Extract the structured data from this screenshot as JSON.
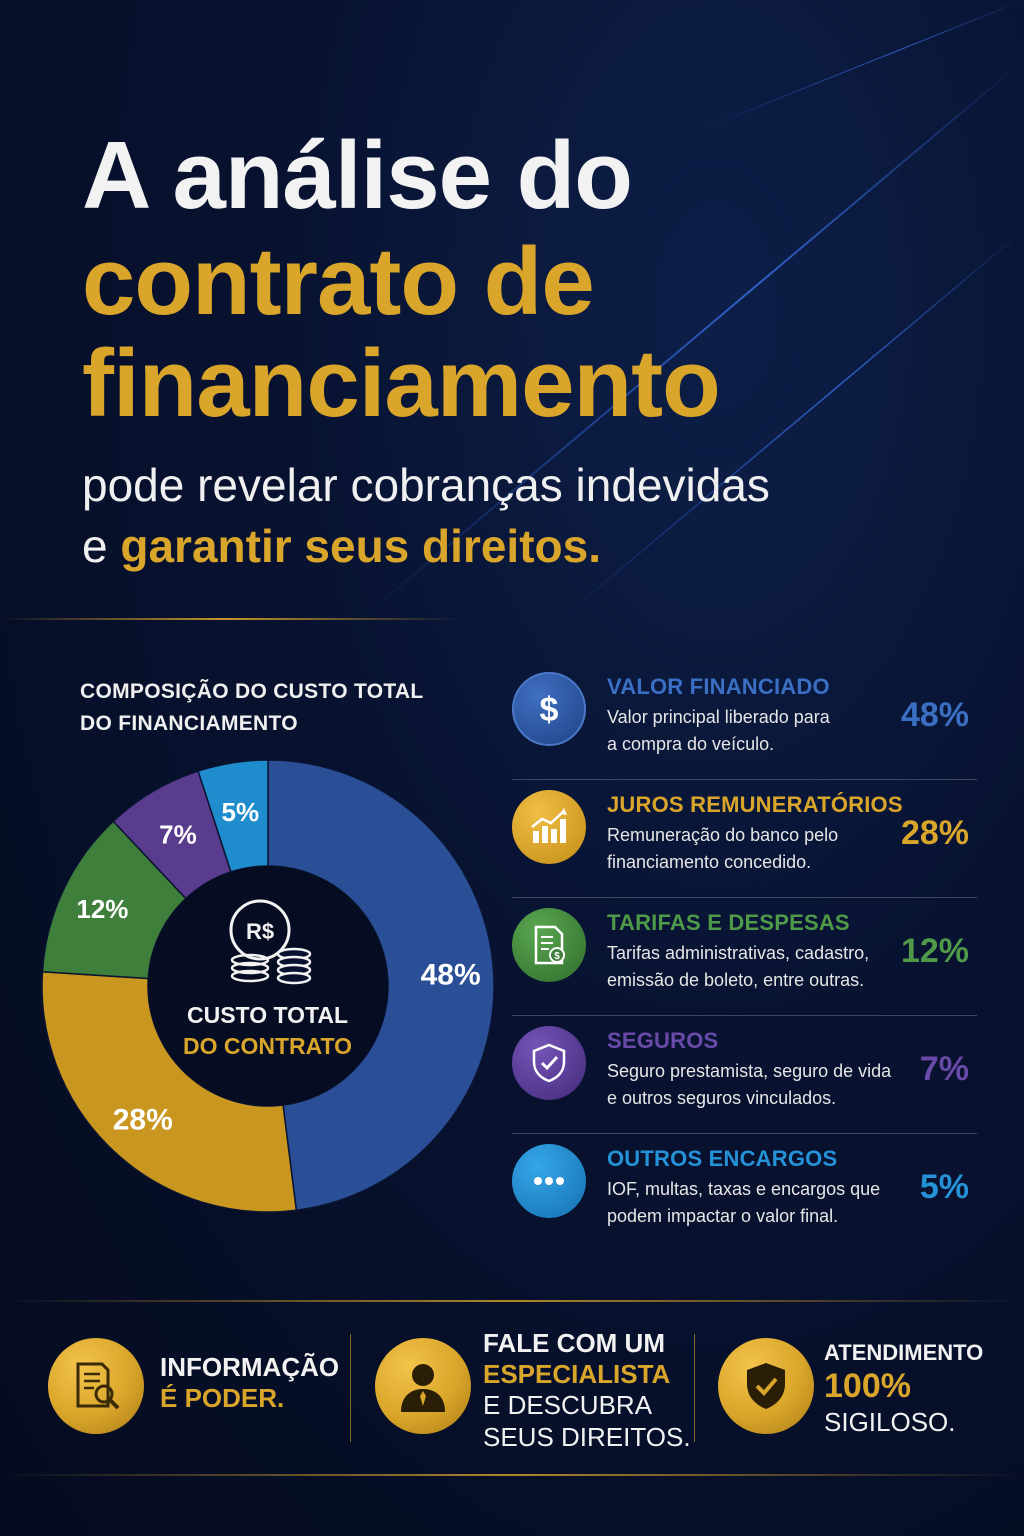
{
  "hero": {
    "line1": "A análise do",
    "line2": "contrato de",
    "line3": "financiamento",
    "line4": "pode revelar cobranças indevidas",
    "line5_prefix": "e ",
    "line5_highlight": "garantir seus direitos."
  },
  "chart_title_line1": "COMPOSIÇÃO DO CUSTO TOTAL",
  "chart_title_line2": "DO FINANCIAMENTO",
  "center": {
    "currency": "R$",
    "line1": "CUSTO TOTAL",
    "line2": "DO CONTRATO"
  },
  "chart_data": {
    "type": "pie",
    "title": "COMPOSIÇÃO DO CUSTO TOTAL DO FINANCIAMENTO",
    "donut": true,
    "categories": [
      "VALOR FINANCIADO",
      "JUROS REMUNERATÓRIOS",
      "TARIFAS E DESPESAS",
      "SEGUROS",
      "OUTROS ENCARGOS"
    ],
    "values": [
      48,
      28,
      12,
      7,
      5
    ],
    "labels": [
      "48%",
      "28%",
      "12%",
      "7%",
      "5%"
    ],
    "colors": [
      "#2a4f96",
      "#c9961f",
      "#3f7f3c",
      "#5a3c8e",
      "#1f8ccd"
    ]
  },
  "legend": [
    {
      "title": "VALOR FINANCIADO",
      "desc1": "Valor principal liberado para",
      "desc2": "a compra do veículo.",
      "pct": "48%",
      "color": "#3a6fc4",
      "icon": "dollar-icon"
    },
    {
      "title": "JUROS REMUNERATÓRIOS",
      "desc1": "Remuneração do banco pelo",
      "desc2": "financiamento concedido.",
      "pct": "28%",
      "color": "#d9a52a",
      "icon": "growth-chart-icon"
    },
    {
      "title": "TARIFAS E DESPESAS",
      "desc1": "Tarifas administrativas, cadastro,",
      "desc2": "emissão de boleto, entre outras.",
      "pct": "12%",
      "color": "#4f9a48",
      "icon": "invoice-icon"
    },
    {
      "title": "SEGUROS",
      "desc1": "Seguro prestamista, seguro de vida",
      "desc2": "e outros seguros vinculados.",
      "pct": "7%",
      "color": "#6a4aa8",
      "icon": "shield-check-icon"
    },
    {
      "title": "OUTROS ENCARGOS",
      "desc1": "IOF, multas, taxas e encargos que",
      "desc2": "podem impactar o valor final.",
      "pct": "5%",
      "color": "#2592d8",
      "icon": "more-dots-icon"
    }
  ],
  "bottom": {
    "info_line1": "INFORMAÇÃO",
    "info_line2": "É PODER.",
    "contact_line1": "FALE COM UM",
    "contact_line2": "ESPECIALISTA",
    "contact_line3": "E DESCUBRA",
    "contact_line4": "SEUS DIREITOS.",
    "secure_line1": "ATENDIMENTO",
    "secure_line2": "100%",
    "secure_line3": "SIGILOSO."
  }
}
